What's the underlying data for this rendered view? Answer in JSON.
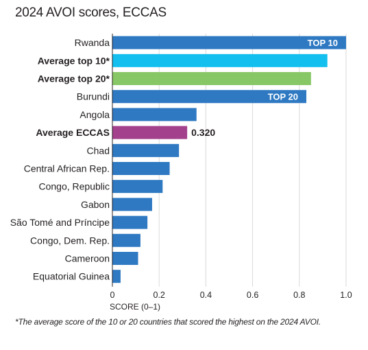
{
  "title": "2024 AVOI scores, ECCAS",
  "footnote": "*The average score of the 10 or 20 countries that scored the highest on the 2024 AVOI.",
  "colors": {
    "country": "#2e79c2",
    "avg_top10": "#12bfee",
    "avg_top20": "#88c766",
    "avg_eccas": "#a3418c",
    "grid": "#d9d9d9"
  },
  "chart_data": {
    "type": "bar",
    "orientation": "horizontal",
    "title": "2024 AVOI scores, ECCAS",
    "xlabel": "SCORE (0–1)",
    "xlim": [
      0,
      1.0
    ],
    "xticks": [
      0,
      0.2,
      0.4,
      0.6,
      0.8,
      1.0
    ],
    "xtick_labels": [
      "0",
      "0.2",
      "0.4",
      "0.6",
      "0.8",
      "1.0"
    ],
    "grid": true,
    "bars": [
      {
        "label": "Rwanda",
        "value": 1.0,
        "kind": "country",
        "bold": false,
        "inbar_label": "TOP 10"
      },
      {
        "label": "Average top 10*",
        "value": 0.92,
        "kind": "avg_top10",
        "bold": true
      },
      {
        "label": "Average top 20*",
        "value": 0.85,
        "kind": "avg_top20",
        "bold": true
      },
      {
        "label": "Burundi",
        "value": 0.83,
        "kind": "country",
        "bold": false,
        "inbar_label": "TOP 20"
      },
      {
        "label": "Angola",
        "value": 0.36,
        "kind": "country",
        "bold": false
      },
      {
        "label": "Average ECCAS",
        "value": 0.32,
        "kind": "avg_eccas",
        "bold": true,
        "value_label": "0.320"
      },
      {
        "label": "Chad",
        "value": 0.285,
        "kind": "country",
        "bold": false
      },
      {
        "label": "Central African Rep.",
        "value": 0.245,
        "kind": "country",
        "bold": false
      },
      {
        "label": "Congo, Republic",
        "value": 0.215,
        "kind": "country",
        "bold": false
      },
      {
        "label": "Gabon",
        "value": 0.17,
        "kind": "country",
        "bold": false
      },
      {
        "label": "São Tomé and Príncipe",
        "value": 0.15,
        "kind": "country",
        "bold": false
      },
      {
        "label": "Congo, Dem. Rep.",
        "value": 0.12,
        "kind": "country",
        "bold": false
      },
      {
        "label": "Cameroon",
        "value": 0.11,
        "kind": "country",
        "bold": false
      },
      {
        "label": "Equatorial Guinea",
        "value": 0.035,
        "kind": "country",
        "bold": false
      }
    ]
  }
}
